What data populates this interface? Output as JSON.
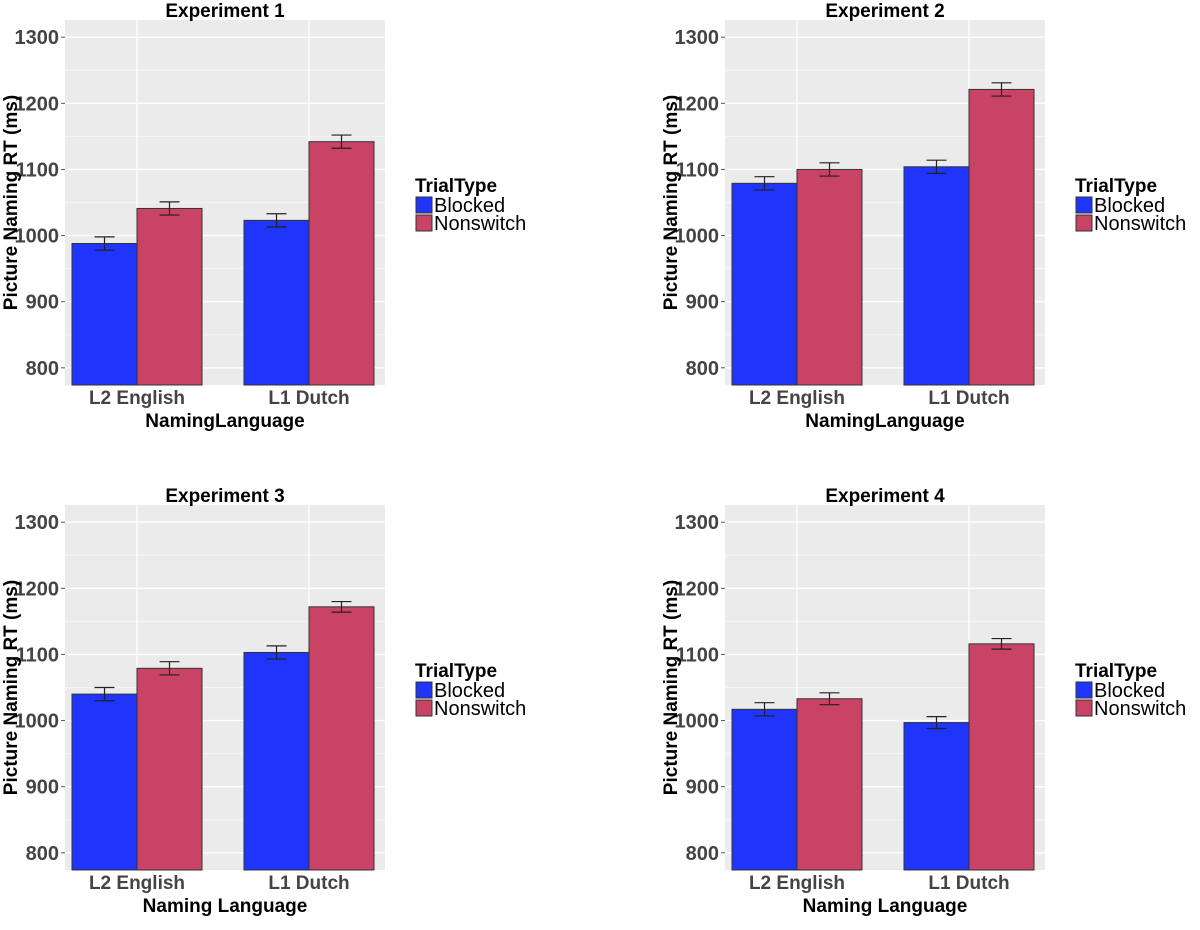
{
  "chart_data": [
    {
      "type": "bar",
      "title": "Experiment 1",
      "xlabel": "NamingLanguage",
      "ylabel": "Picture Naming RT (ms)",
      "categories": [
        "L2 English",
        "L1 Dutch"
      ],
      "ylim": [
        774,
        1326
      ],
      "yticks": [
        "800",
        "900",
        "1000",
        "1100",
        "1200",
        "1300"
      ],
      "legend": {
        "title": "TrialType",
        "position": "right"
      },
      "series": [
        {
          "name": "Blocked",
          "color": "#1f35fb",
          "values": [
            988,
            1023
          ],
          "errors": [
            10,
            10
          ]
        },
        {
          "name": "Nonswitch",
          "color": "#c84364",
          "values": [
            1041,
            1142
          ],
          "errors": [
            10,
            10
          ]
        }
      ],
      "grid": true
    },
    {
      "type": "bar",
      "title": "Experiment 2",
      "xlabel": "NamingLanguage",
      "ylabel": "Picture Naming RT (ms)",
      "categories": [
        "L2 English",
        "L1 Dutch"
      ],
      "ylim": [
        774,
        1326
      ],
      "yticks": [
        "800",
        "900",
        "1000",
        "1100",
        "1200",
        "1300"
      ],
      "legend": {
        "title": "TrialType",
        "position": "right"
      },
      "series": [
        {
          "name": "Blocked",
          "color": "#1f35fb",
          "values": [
            1079,
            1104
          ],
          "errors": [
            10,
            10
          ]
        },
        {
          "name": "Nonswitch",
          "color": "#c84364",
          "values": [
            1100,
            1221
          ],
          "errors": [
            10,
            10
          ]
        }
      ],
      "grid": true
    },
    {
      "type": "bar",
      "title": "Experiment 3",
      "xlabel": "Naming Language",
      "ylabel": "Picture Naming RT (ms)",
      "categories": [
        "L2 English",
        "L1 Dutch"
      ],
      "ylim": [
        774,
        1326
      ],
      "yticks": [
        "800",
        "900",
        "1000",
        "1100",
        "1200",
        "1300"
      ],
      "legend": {
        "title": "TrialType",
        "position": "right"
      },
      "series": [
        {
          "name": "Blocked",
          "color": "#1f35fb",
          "values": [
            1040,
            1103
          ],
          "errors": [
            10,
            10
          ]
        },
        {
          "name": "Nonswitch",
          "color": "#c84364",
          "values": [
            1079,
            1172
          ],
          "errors": [
            10,
            8
          ]
        }
      ],
      "grid": true
    },
    {
      "type": "bar",
      "title": "Experiment 4",
      "xlabel": "Naming Language",
      "ylabel": "Picture Naming RT (ms)",
      "categories": [
        "L2 English",
        "L1 Dutch"
      ],
      "ylim": [
        774,
        1326
      ],
      "yticks": [
        "800",
        "900",
        "1000",
        "1100",
        "1200",
        "1300"
      ],
      "legend": {
        "title": "TrialType",
        "position": "right"
      },
      "series": [
        {
          "name": "Blocked",
          "color": "#1f35fb",
          "values": [
            1017,
            997
          ],
          "errors": [
            10,
            9
          ]
        },
        {
          "name": "Nonswitch",
          "color": "#c84364",
          "values": [
            1033,
            1116
          ],
          "errors": [
            9,
            8
          ]
        }
      ],
      "grid": true
    }
  ]
}
